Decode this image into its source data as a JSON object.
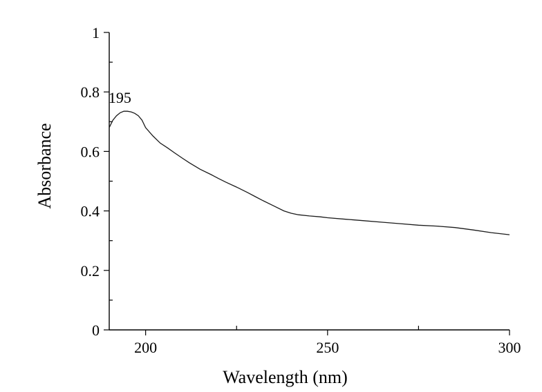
{
  "chart_data": {
    "type": "line",
    "title": "",
    "xlabel": "Wavelength (nm)",
    "ylabel": "Absorbance",
    "xlim": [
      190,
      300
    ],
    "ylim": [
      0,
      1
    ],
    "x_ticks": [
      200,
      250,
      300
    ],
    "y_ticks": [
      0,
      0.2,
      0.4,
      0.6,
      0.8,
      1
    ],
    "x_tick_labels": [
      "200",
      "250",
      "300"
    ],
    "y_tick_labels": [
      "0",
      "0.2",
      "0.4",
      "0.6",
      "0.8",
      "1"
    ],
    "grid": false,
    "legend": "none",
    "annotations": [
      {
        "text": "195",
        "x": 195,
        "y": 0.735
      }
    ],
    "series": [
      {
        "color": "#1a1a1a",
        "x": [
          190,
          191,
          192,
          193,
          194,
          195,
          196,
          197,
          198,
          199,
          200,
          202,
          204,
          206,
          208,
          210,
          212,
          215,
          218,
          220,
          222,
          225,
          228,
          230,
          232,
          235,
          238,
          240,
          242,
          245,
          248,
          250,
          255,
          260,
          265,
          270,
          275,
          280,
          285,
          290,
          295,
          300
        ],
        "y": [
          0.68,
          0.705,
          0.72,
          0.73,
          0.735,
          0.735,
          0.733,
          0.728,
          0.72,
          0.705,
          0.68,
          0.652,
          0.628,
          0.612,
          0.595,
          0.578,
          0.562,
          0.54,
          0.522,
          0.509,
          0.497,
          0.48,
          0.462,
          0.449,
          0.436,
          0.418,
          0.4,
          0.392,
          0.387,
          0.383,
          0.38,
          0.377,
          0.372,
          0.367,
          0.362,
          0.357,
          0.352,
          0.349,
          0.344,
          0.336,
          0.327,
          0.32
        ]
      }
    ]
  }
}
